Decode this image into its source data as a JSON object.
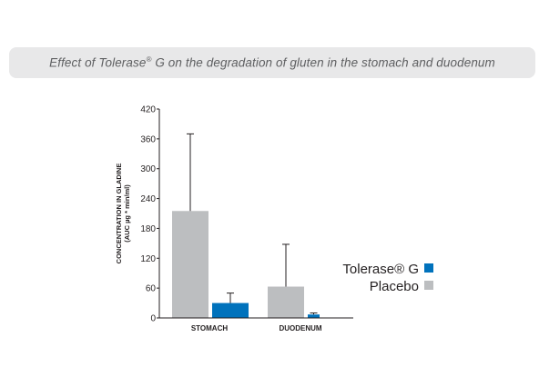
{
  "chart_data": {
    "type": "bar",
    "title_prefix": "Effect of Tolerase",
    "title_reg": "®",
    "title_suffix": " G on the degradation of gluten in the stomach and duodenum",
    "ylabel_line1": "CONCENTRATION IN GLADINE",
    "ylabel_line2": "(AUC µg * min/ml)",
    "categories": [
      "STOMACH",
      "DUODENUM"
    ],
    "ylim": [
      0,
      420
    ],
    "yticks": [
      "420",
      "360",
      "300",
      "240",
      "180",
      "120",
      "60",
      "0"
    ],
    "ytick_values": [
      420,
      360,
      300,
      240,
      180,
      120,
      60,
      0
    ],
    "series": [
      {
        "name": "Placebo",
        "color": "#bcbec0",
        "values": [
          215,
          63
        ],
        "error_upper": [
          370,
          148
        ]
      },
      {
        "name": "Tolerase® G",
        "color": "#0072bc",
        "values": [
          30,
          7
        ],
        "error_upper": [
          50,
          10
        ]
      }
    ],
    "legend": [
      {
        "label": "Tolerase® G",
        "color": "#0072bc"
      },
      {
        "label": "Placebo",
        "color": "#bcbec0"
      }
    ],
    "legend_position": "right",
    "grid": false
  }
}
